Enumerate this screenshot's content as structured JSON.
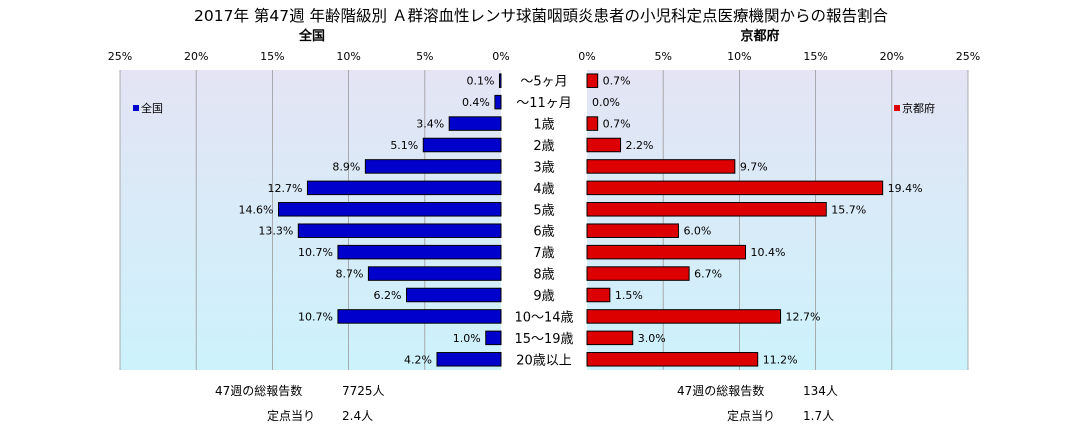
{
  "title": "2017年 第47週 年齢階級別 Ａ群溶血性レンサ球菌咽頭炎患者の小児科定点医療機関からの報告割合",
  "chart_data": {
    "type": "bar",
    "orientation": "horizontal",
    "layout": "butterfly",
    "categories": [
      "～5ヶ月",
      "～11ヶ月",
      "1歳",
      "2歳",
      "3歳",
      "4歳",
      "5歳",
      "6歳",
      "7歳",
      "8歳",
      "9歳",
      "10～14歳",
      "15～19歳",
      "20歳以上"
    ],
    "series": [
      {
        "name": "全国",
        "panel_title": "全国",
        "color": "#0000cc",
        "values": [
          0.1,
          0.4,
          3.4,
          5.1,
          8.9,
          12.7,
          14.6,
          13.3,
          10.7,
          8.7,
          6.2,
          10.7,
          1.0,
          4.2
        ],
        "labels": [
          "0.1%",
          "0.4%",
          "3.4%",
          "5.1%",
          "8.9%",
          "12.7%",
          "14.6%",
          "13.3%",
          "10.7%",
          "8.7%",
          "6.2%",
          "10.7%",
          "1.0%",
          "4.2%"
        ]
      },
      {
        "name": "京都府",
        "panel_title": "京都府",
        "color": "#dd0000",
        "values": [
          0.7,
          0.0,
          0.7,
          2.2,
          9.7,
          19.4,
          15.7,
          6.0,
          10.4,
          6.7,
          1.5,
          12.7,
          3.0,
          11.2
        ],
        "labels": [
          "0.7%",
          "0.0%",
          "0.7%",
          "2.2%",
          "9.7%",
          "19.4%",
          "15.7%",
          "6.0%",
          "10.4%",
          "6.7%",
          "1.5%",
          "12.7%",
          "3.0%",
          "11.2%"
        ]
      }
    ],
    "xlim": [
      0,
      25
    ],
    "ticks": [
      0,
      5,
      10,
      15,
      20,
      25
    ],
    "tick_labels": [
      "0%",
      "5%",
      "10%",
      "15%",
      "20%",
      "25%"
    ],
    "grid": true,
    "legend_left": "top-left",
    "legend_right": "top-right"
  },
  "stats": {
    "left_total_label": "47週の総報告数",
    "left_total_value": "7725人",
    "left_per_label": "定点当り",
    "left_per_value": "2.4人",
    "right_total_label": "47週の総報告数",
    "right_total_value": "134人",
    "right_per_label": "定点当り",
    "right_per_value": "1.7人"
  },
  "colors": {
    "plot_gradient_top": "#e4e4f4",
    "plot_gradient_bottom": "#ccf2fc",
    "gridline": "#9a9a9a"
  }
}
